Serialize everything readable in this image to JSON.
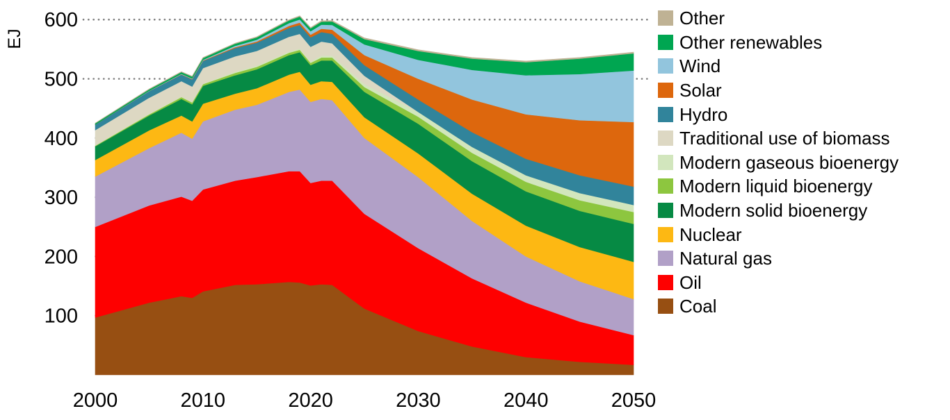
{
  "chart_data": {
    "type": "area",
    "stacked": true,
    "title": "",
    "xlabel": "",
    "ylabel": "EJ",
    "unit": "EJ",
    "x": [
      2000,
      2005,
      2008,
      2009,
      2010,
      2013,
      2015,
      2018,
      2019,
      2020,
      2021,
      2022,
      2025,
      2030,
      2035,
      2040,
      2045,
      2050
    ],
    "xlim": [
      2000,
      2050
    ],
    "ylim": [
      0,
      635
    ],
    "yticks": [
      100,
      200,
      300,
      400,
      500,
      600
    ],
    "xticks": [
      2000,
      2010,
      2020,
      2030,
      2040,
      2050
    ],
    "grid": "dotted horizontal gridlines at 500 and 600 only; small dot tick marks at 100-400",
    "gridlines_at": [
      500,
      600
    ],
    "legend_position": "right, top-to-bottom in reverse stack order",
    "stack_order_note": "series listed bottom of stack first",
    "series": [
      {
        "name": "Coal",
        "color": "#974f12",
        "values": [
          97,
          122,
          133,
          130,
          141,
          152,
          153,
          157,
          156,
          151,
          153,
          152,
          112,
          74,
          48,
          30,
          22,
          17
        ]
      },
      {
        "name": "Oil",
        "color": "#fe0000",
        "values": [
          153,
          164,
          168,
          164,
          172,
          176,
          181,
          187,
          188,
          173,
          175,
          176,
          160,
          140,
          115,
          92,
          68,
          50
        ]
      },
      {
        "name": "Natural gas",
        "color": "#b1a0c7",
        "values": [
          85,
          97,
          108,
          105,
          115,
          120,
          122,
          134,
          138,
          137,
          138,
          136,
          128,
          120,
          97,
          78,
          68,
          61
        ]
      },
      {
        "name": "Nuclear",
        "color": "#fdb813",
        "values": [
          28,
          30,
          29,
          29,
          30,
          27,
          28,
          29,
          30,
          29,
          30,
          31,
          35,
          40,
          46,
          52,
          58,
          63
        ]
      },
      {
        "name": "Modern solid bioenergy",
        "color": "#068a44",
        "values": [
          23,
          25,
          28,
          29,
          30,
          31,
          32,
          33,
          33,
          33,
          35,
          36,
          43,
          50,
          55,
          58,
          61,
          64
        ]
      },
      {
        "name": "Modern liquid bioenergy",
        "color": "#8dc63f",
        "values": [
          1,
          2,
          3,
          3,
          3,
          4,
          4,
          4,
          4,
          4,
          5,
          5,
          8,
          12,
          14,
          16,
          18,
          20
        ]
      },
      {
        "name": "Modern gaseous bioenergy",
        "color": "#d2e6bd",
        "values": [
          0.5,
          1,
          1,
          1,
          1,
          2,
          2,
          2,
          2,
          2,
          3,
          3,
          5,
          8,
          10,
          11,
          12,
          12
        ]
      },
      {
        "name": "Traditional use of biomass",
        "color": "#ddd8c3",
        "values": [
          26,
          27,
          26,
          26,
          26,
          26,
          25,
          25,
          25,
          25,
          24,
          21,
          14,
          0,
          0,
          0,
          0,
          0
        ]
      },
      {
        "name": "Hydro",
        "color": "#31849b",
        "values": [
          9,
          11,
          11,
          12,
          12,
          14,
          14,
          15,
          15,
          16,
          16,
          16,
          18,
          21,
          25,
          28,
          30,
          31
        ]
      },
      {
        "name": "Solar",
        "color": "#dd670d",
        "values": [
          0.2,
          0.3,
          0.5,
          0.6,
          0.8,
          1.5,
          2,
          3.5,
          4,
          4.5,
          5.5,
          7,
          17,
          35,
          55,
          75,
          93,
          109
        ]
      },
      {
        "name": "Wind",
        "color": "#92c5dd",
        "values": [
          0.1,
          0.4,
          0.8,
          1,
          1.2,
          2.3,
          3,
          4.6,
          5.2,
          5.8,
          7,
          8,
          18,
          32,
          50,
          66,
          78,
          87
        ]
      },
      {
        "name": "Other renewables",
        "color": "#00a651",
        "values": [
          2,
          2.5,
          3,
          3,
          3,
          3.5,
          4,
          4.5,
          5,
          5,
          5,
          6,
          9,
          15,
          19,
          22,
          26,
          29
        ]
      },
      {
        "name": "Other",
        "color": "#bfb294",
        "values": [
          0.5,
          0.7,
          0.8,
          0.8,
          1,
          1,
          1,
          1.2,
          1.3,
          1.3,
          1.5,
          1.5,
          2,
          2,
          2,
          2,
          2,
          2
        ]
      }
    ],
    "totals_EJ_approx": {
      "2000": 425,
      "2010": 536,
      "2019_peak": 607,
      "2020": 587,
      "2030": 549,
      "2040": 530,
      "2050": 545
    },
    "gridline_color": "#7f7f7f",
    "text_color": "#000000"
  }
}
